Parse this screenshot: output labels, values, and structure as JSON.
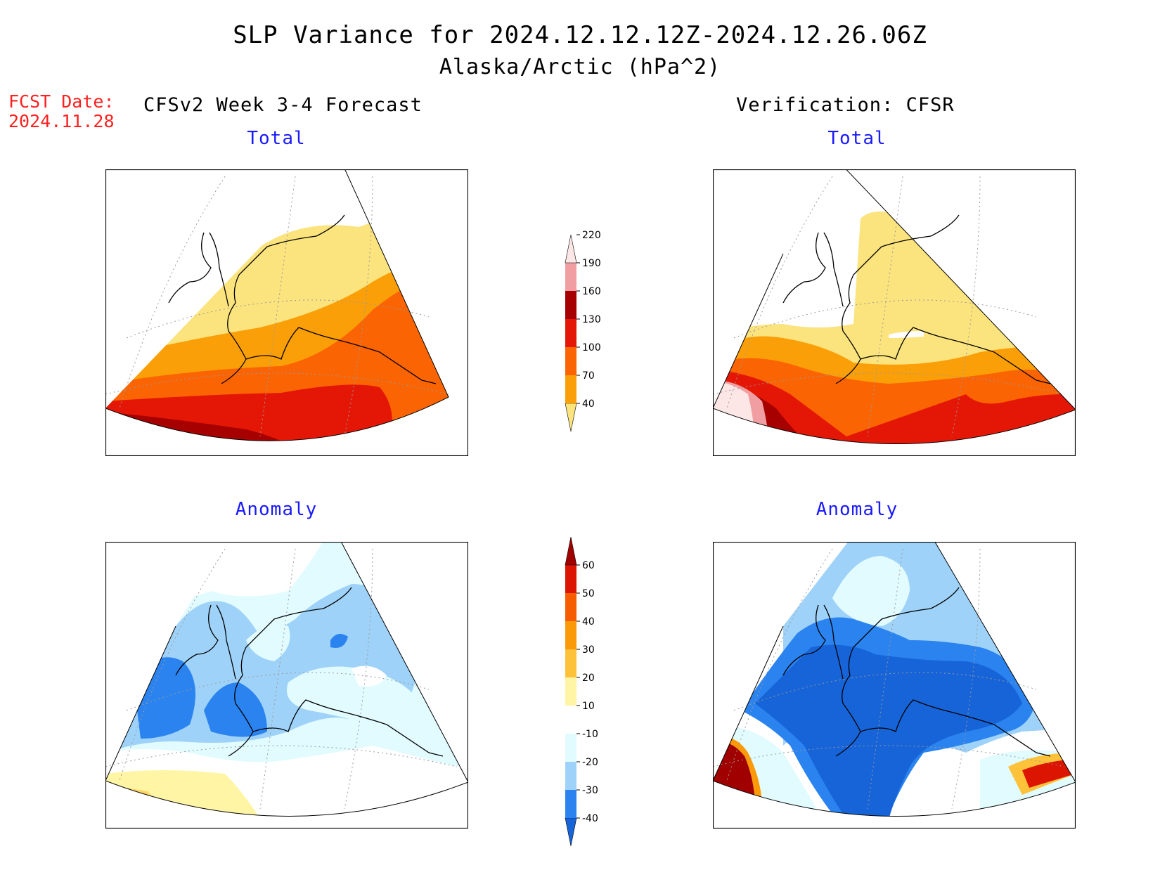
{
  "title": "SLP Variance for 2024.12.12.12Z-2024.12.26.06Z",
  "subtitle": "Alaska/Arctic (hPa^2)",
  "forecast_date": {
    "label": "FCST Date:",
    "value": "2024.11.28"
  },
  "columns": {
    "left": "CFSv2 Week 3-4 Forecast",
    "right": "Verification: CFSR"
  },
  "panels": {
    "top_left": "Total",
    "top_right": "Total",
    "bottom_left": "Anomaly",
    "bottom_right": "Anomaly"
  },
  "colorbars": {
    "total": {
      "levels": [
        "40",
        "70",
        "100",
        "130",
        "160",
        "190",
        "220"
      ],
      "colors": [
        "#fbe37e",
        "#fb9f08",
        "#fb6402",
        "#e41707",
        "#a60000",
        "#f09ea1",
        "#fde6e6"
      ]
    },
    "anomaly": {
      "levels": [
        "-40",
        "-30",
        "-20",
        "-10",
        "10",
        "20",
        "30",
        "40",
        "50",
        "60"
      ],
      "colors": [
        "#1664d8",
        "#2a83ef",
        "#9fd2f8",
        "#e1fbff",
        "#ffffff",
        "#fff5a5",
        "#fdc23a",
        "#fa9a08",
        "#f65d01",
        "#dc1502",
        "#a00000"
      ]
    }
  },
  "maps": {
    "colors": {
      "coast": "#000000",
      "graticule": "#9a9a9a"
    }
  }
}
